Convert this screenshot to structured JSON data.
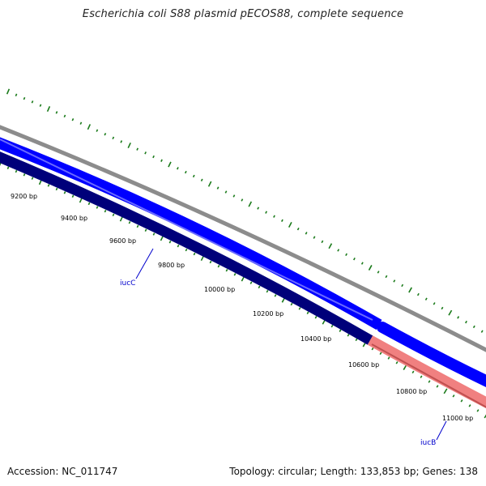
{
  "title": "Escherichia coli S88 plasmid pECOS88, complete sequence",
  "footer": {
    "accession": "Accession: NC_011747",
    "summary": "Topology: circular; Length: 133,853 bp; Genes: 138"
  },
  "colors": {
    "background": "#ffffff",
    "backbone": "#8c8c8c",
    "forward_cds": "#0000ff",
    "reverse_cds": "#00007a",
    "gene_highlight": "#f08080",
    "tick": "#1a7a1a",
    "gene_label": "#0000cc"
  },
  "tick_labels": [
    "9200 bp",
    "9400 bp",
    "9600 bp",
    "9800 bp",
    "10000 bp",
    "10200 bp",
    "10400 bp",
    "10600 bp",
    "10800 bp",
    "11000 bp"
  ],
  "genes": [
    {
      "name": "iucC",
      "strand": "reverse"
    },
    {
      "name": "iucB",
      "strand": "reverse"
    }
  ]
}
